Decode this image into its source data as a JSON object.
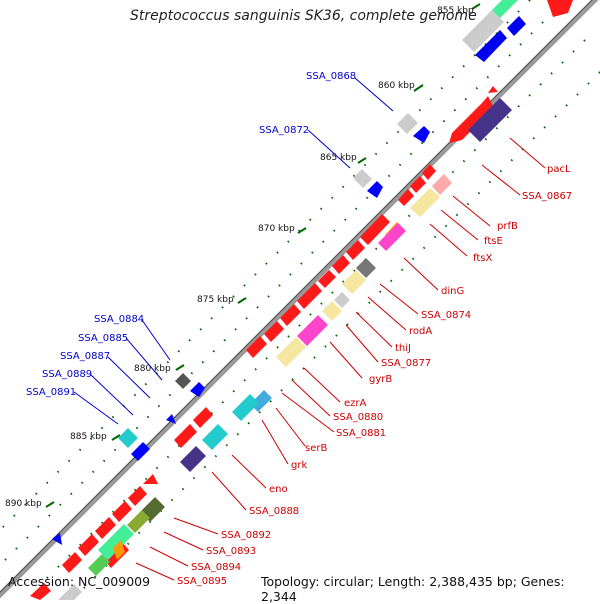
{
  "title": "Streptococcus sanguinis SK36, complete genome",
  "accession": "Accession: NC_009009",
  "topology": "Topology: circular; Length: 2,388,435 bp; Genes: 2,344",
  "colors": {
    "backbone": "#808080",
    "forward_gene": "#ff0000",
    "reverse_gene": "#0000ff",
    "label_forward": "#cc0000",
    "label_reverse": "#0000cc",
    "tick": "#006600"
  },
  "kbp_labels": [
    "855 kbp",
    "860 kbp",
    "865 kbp",
    "870 kbp",
    "875 kbp",
    "880 kbp",
    "885 kbp",
    "890 kbp"
  ],
  "forward_labels": [
    "pacL",
    "SSA_0867",
    "prfB",
    "ftsE",
    "ftsX",
    "dinG",
    "SSA_0874",
    "rodA",
    "thiJ",
    "SSA_0877",
    "gyrB",
    "ezrA",
    "SSA_0880",
    "SSA_0881",
    "serB",
    "grk",
    "eno",
    "SSA_0888",
    "SSA_0892",
    "SSA_0893",
    "SSA_0894",
    "SSA_0895"
  ],
  "reverse_labels": [
    "SSA_0868",
    "SSA_0872",
    "SSA_0884",
    "SSA_0885",
    "SSA_0887",
    "SSA_0889",
    "SSA_0891"
  ]
}
